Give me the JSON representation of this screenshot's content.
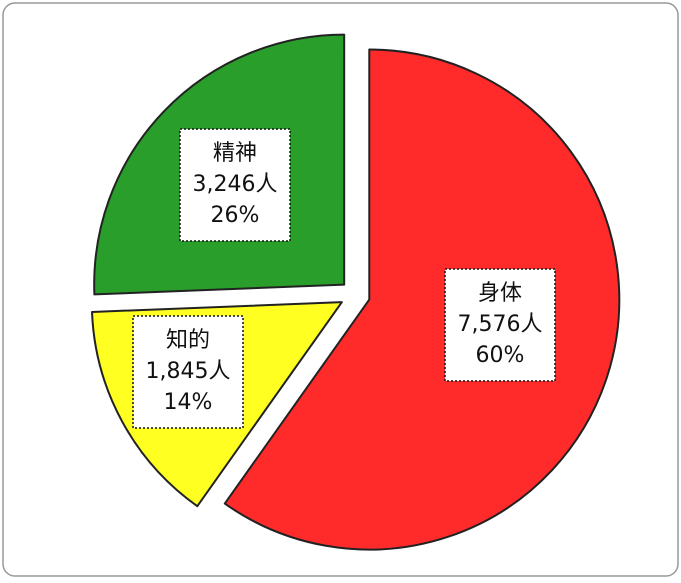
{
  "chart_data": {
    "type": "pie",
    "categories": [
      "身体",
      "知的",
      "精神"
    ],
    "values": [
      7576,
      1845,
      3246
    ],
    "value_labels": [
      "7,576人",
      "1,845人",
      "3,246人"
    ],
    "percentages": [
      60,
      14,
      26
    ],
    "percent_labels": [
      "60%",
      "14%",
      "26%"
    ],
    "colors": [
      "#ff2b2b",
      "#ffff22",
      "#2a9e2a"
    ],
    "exploded": true
  }
}
